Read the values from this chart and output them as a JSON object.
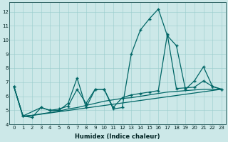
{
  "xlabel": "Humidex (Indice chaleur)",
  "background_color": "#cce8e8",
  "line_color": "#006666",
  "xlim": [
    -0.5,
    23.5
  ],
  "ylim": [
    4,
    12.7
  ],
  "yticks": [
    4,
    5,
    6,
    7,
    8,
    9,
    10,
    11,
    12
  ],
  "xticks": [
    0,
    1,
    2,
    3,
    4,
    5,
    6,
    7,
    8,
    9,
    10,
    11,
    12,
    13,
    14,
    15,
    16,
    17,
    18,
    19,
    20,
    21,
    22,
    23
  ],
  "line1_x": [
    0,
    1,
    2,
    3,
    4,
    5,
    6,
    7,
    8,
    9,
    10,
    11,
    12,
    13,
    14,
    15,
    16,
    17,
    18,
    19,
    20,
    21,
    22,
    23
  ],
  "line1_y": [
    6.7,
    4.6,
    4.5,
    5.2,
    5.0,
    5.0,
    5.5,
    7.3,
    5.2,
    6.5,
    6.5,
    5.1,
    5.2,
    9.0,
    10.7,
    11.5,
    12.2,
    10.3,
    9.6,
    6.5,
    7.1,
    8.1,
    6.7,
    6.5
  ],
  "line2_x": [
    0,
    1,
    3,
    4,
    5,
    6,
    7,
    8,
    9,
    10,
    11,
    12,
    13,
    14,
    15,
    16,
    17,
    18,
    19,
    20,
    21,
    22,
    23
  ],
  "line2_y": [
    6.7,
    4.6,
    5.2,
    5.0,
    5.1,
    5.3,
    6.5,
    5.5,
    6.5,
    6.5,
    5.2,
    5.9,
    6.1,
    6.2,
    6.3,
    6.4,
    10.4,
    6.55,
    6.6,
    6.65,
    7.1,
    6.7,
    6.5
  ],
  "line3_x": [
    0,
    1,
    23
  ],
  "line3_y": [
    6.7,
    4.55,
    6.5
  ],
  "line4_x": [
    0,
    1,
    2,
    3,
    4,
    5,
    6,
    7,
    8,
    9,
    10,
    11,
    12,
    13,
    14,
    15,
    16,
    17,
    18,
    19,
    20,
    21,
    22,
    23
  ],
  "line4_y": [
    6.7,
    4.6,
    4.65,
    4.75,
    4.85,
    4.95,
    5.1,
    5.2,
    5.35,
    5.5,
    5.65,
    5.75,
    5.85,
    5.9,
    6.0,
    6.1,
    6.2,
    6.3,
    6.35,
    6.4,
    6.45,
    6.5,
    6.5,
    6.5
  ]
}
